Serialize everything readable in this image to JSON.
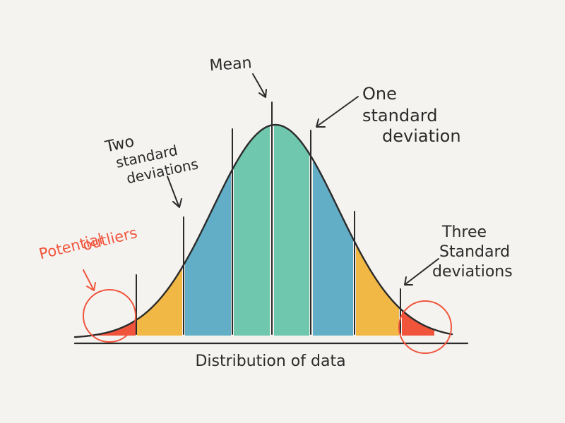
{
  "labels": {
    "mean": "Mean",
    "one_sd": [
      "One",
      "standard",
      "deviation"
    ],
    "two_sd": [
      "Two",
      "standard",
      "deviations"
    ],
    "three_sd": [
      "Three",
      "Standard",
      "deviations"
    ],
    "outliers": [
      "Potential",
      "outliers"
    ],
    "axis": "Distribution of data"
  },
  "colors": {
    "outlier": "#f0553c",
    "three_sd_band": "#f2b845",
    "two_sd_band": "#62aec6",
    "one_sd_band": "#6fc7ad",
    "ink": "#2b2b2b",
    "background": "#f5f3f0"
  }
}
